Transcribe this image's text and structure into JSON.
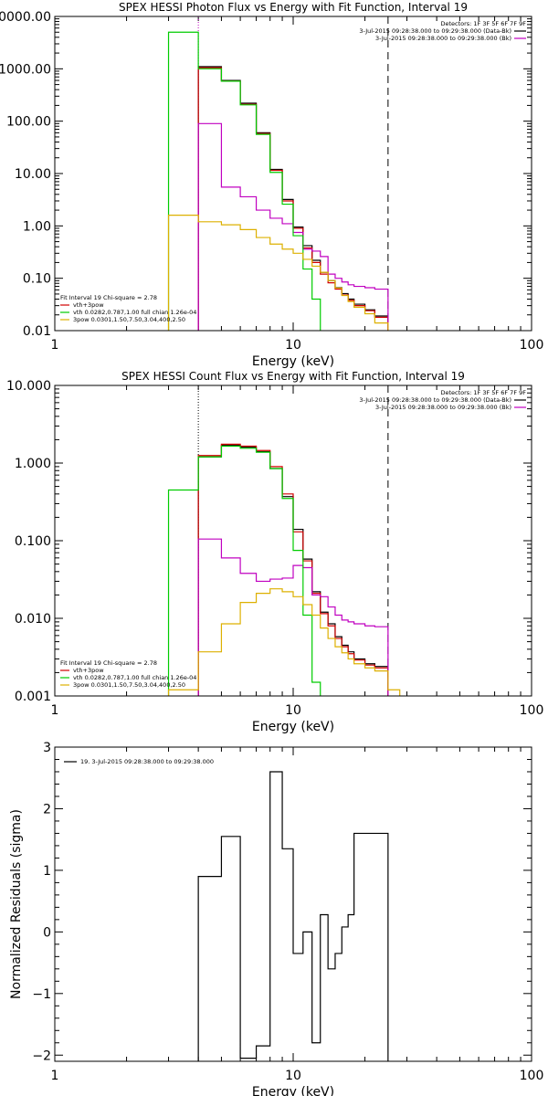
{
  "chart_data": [
    {
      "type": "line",
      "title": "SPEX HESSI Photon Flux vs Energy with Fit Function, Interval 19",
      "xlabel": "Energy (keV)",
      "ylabel": "",
      "xscale": "log",
      "yscale": "log",
      "xlim": [
        1,
        100
      ],
      "ylim": [
        0.01,
        10000
      ],
      "x_ticks": [
        {
          "value": 1,
          "label": "1"
        },
        {
          "value": 10,
          "label": "10"
        },
        {
          "value": 100,
          "label": "100"
        }
      ],
      "y_ticks": [
        {
          "value": 0.01,
          "label": "0.01"
        },
        {
          "value": 0.1,
          "label": "0.10"
        },
        {
          "value": 1,
          "label": "1.00"
        },
        {
          "value": 10,
          "label": "10.00"
        },
        {
          "value": 100,
          "label": "100.00"
        },
        {
          "value": 1000,
          "label": "1000.00"
        },
        {
          "value": 10000,
          "label": "10000.00"
        }
      ],
      "fit_range_lines": [
        {
          "x": 4.0,
          "style": "dotted",
          "color": "#c000c0"
        },
        {
          "x": 25.0,
          "style": "dashed",
          "color": "#000000"
        }
      ],
      "legend_top_right": [
        {
          "text": "Detectors: 1F 3F 5F 6F 7F 9F",
          "color": "#000000"
        },
        {
          "text": "3-Jul-2015 09:28:38.000 to 09:29:38.000 (Data-Bk)",
          "color": "#000000",
          "swatch": true
        },
        {
          "text": "3-Jul-2015 09:28:38.000 to 09:29:38.000 (Bk)",
          "color": "#c000c0",
          "swatch": true
        }
      ],
      "legend_bottom_left": [
        {
          "text": "Fit Interval 19   Chi-square = 2.78",
          "color": "#000000",
          "swatch": false
        },
        {
          "text": "vth+3pow",
          "color": "#d00000",
          "swatch": true
        },
        {
          "text": "vth 0.0282,0.787,1.00  full chian 1.26e-04",
          "color": "#00cc00",
          "swatch": true
        },
        {
          "text": "3pow 0.0301,1.50,7.50,3.04,400,2.50",
          "color": "#ddb000",
          "swatch": true
        }
      ],
      "series": [
        {
          "role": "data",
          "color": "#000000",
          "edges": [
            4,
            5,
            6,
            7,
            8,
            9,
            10,
            11,
            12,
            13,
            14,
            15,
            16,
            17,
            18,
            20,
            22,
            25
          ],
          "values": [
            1100,
            600,
            220,
            60,
            12,
            3.2,
            0.95,
            0.42,
            0.22,
            0.13,
            0.09,
            0.066,
            0.051,
            0.04,
            0.032,
            0.025,
            0.019
          ]
        },
        {
          "role": "total",
          "color": "#d00000",
          "edges": [
            4,
            5,
            6,
            7,
            8,
            9,
            10,
            11,
            12,
            13,
            14,
            15,
            16,
            17,
            18,
            20,
            22,
            25
          ],
          "values": [
            1050,
            580,
            210,
            58,
            11.5,
            3.0,
            0.9,
            0.38,
            0.2,
            0.12,
            0.082,
            0.062,
            0.048,
            0.038,
            0.03,
            0.024,
            0.018
          ]
        },
        {
          "role": "background",
          "color": "#c000c0",
          "edges": [
            4,
            5,
            6,
            7,
            8,
            9,
            10,
            11,
            12,
            13,
            14,
            15,
            16,
            17,
            18,
            20,
            22,
            25
          ],
          "values": [
            90,
            5.5,
            3.6,
            2.0,
            1.4,
            1.1,
            0.75,
            0.36,
            0.33,
            0.26,
            0.12,
            0.1,
            0.085,
            0.075,
            0.07,
            0.066,
            0.062
          ]
        },
        {
          "role": "thermal",
          "color": "#00cc00",
          "edges": [
            3,
            4,
            5,
            6,
            7,
            8,
            9,
            10,
            11,
            12,
            13
          ],
          "values": [
            5000,
            1000,
            580,
            205,
            56,
            10.5,
            2.6,
            0.65,
            0.15,
            0.04
          ]
        },
        {
          "role": "powerlaw",
          "color": "#ddb000",
          "edges": [
            3,
            4,
            5,
            6,
            7,
            8,
            9,
            10,
            11,
            12,
            13,
            14,
            15,
            16,
            17,
            18,
            20,
            22,
            25,
            28
          ],
          "values": [
            1.6,
            1.2,
            1.05,
            0.85,
            0.6,
            0.45,
            0.36,
            0.3,
            0.23,
            0.17,
            0.13,
            0.09,
            0.065,
            0.047,
            0.036,
            0.028,
            0.021,
            0.014,
            0.009
          ]
        }
      ]
    },
    {
      "type": "line",
      "title": "SPEX HESSI Count Flux vs Energy with Fit Function, Interval 19",
      "xlabel": "Energy (keV)",
      "ylabel": "",
      "xscale": "log",
      "yscale": "log",
      "xlim": [
        1,
        100
      ],
      "ylim": [
        0.001,
        10
      ],
      "x_ticks": [
        {
          "value": 1,
          "label": "1"
        },
        {
          "value": 10,
          "label": "10"
        },
        {
          "value": 100,
          "label": "100"
        }
      ],
      "y_ticks": [
        {
          "value": 0.001,
          "label": "0.001"
        },
        {
          "value": 0.01,
          "label": "0.010"
        },
        {
          "value": 0.1,
          "label": "0.100"
        },
        {
          "value": 1,
          "label": "1.000"
        },
        {
          "value": 10,
          "label": "10.000"
        }
      ],
      "fit_range_lines": [
        {
          "x": 4.0,
          "style": "dotted",
          "color": "#000000"
        },
        {
          "x": 25.0,
          "style": "dashed",
          "color": "#000000"
        }
      ],
      "legend_top_right": [
        {
          "text": "Detectors: 1F 3F 5F 6F 7F 9F",
          "color": "#000000"
        },
        {
          "text": "3-Jul-2015 09:28:38.000 to 09:29:38.000 (Data-Bk)",
          "color": "#000000",
          "swatch": true
        },
        {
          "text": "3-Jul-2015 09:28:38.000 to 09:29:38.000 (Bk)",
          "color": "#c000c0",
          "swatch": true
        }
      ],
      "legend_bottom_left": [
        {
          "text": "Fit Interval 19   Chi-square = 2.78",
          "color": "#000000",
          "swatch": false
        },
        {
          "text": "vth+3pow",
          "color": "#d00000",
          "swatch": true
        },
        {
          "text": "vth 0.0282,0.787,1.00  full chian 1.26e-04",
          "color": "#00cc00",
          "swatch": true
        },
        {
          "text": "3pow 0.0301,1.50,7.50,3.04,400,2.50",
          "color": "#ddb000",
          "swatch": true
        }
      ],
      "series": [
        {
          "role": "data",
          "color": "#000000",
          "edges": [
            4,
            5,
            6,
            7,
            8,
            9,
            10,
            11,
            12,
            13,
            14,
            15,
            16,
            17,
            18,
            20,
            22,
            25
          ],
          "values": [
            1.2,
            1.7,
            1.6,
            1.4,
            0.85,
            0.37,
            0.14,
            0.058,
            0.022,
            0.012,
            0.0085,
            0.0058,
            0.0045,
            0.0037,
            0.003,
            0.0026,
            0.0024
          ]
        },
        {
          "role": "total",
          "color": "#d00000",
          "edges": [
            4,
            5,
            6,
            7,
            8,
            9,
            10,
            11,
            12,
            13,
            14,
            15,
            16,
            17,
            18,
            20,
            22,
            25
          ],
          "values": [
            1.25,
            1.75,
            1.65,
            1.45,
            0.9,
            0.4,
            0.13,
            0.055,
            0.021,
            0.0115,
            0.008,
            0.0055,
            0.0043,
            0.0035,
            0.0029,
            0.0025,
            0.0023
          ]
        },
        {
          "role": "background",
          "color": "#c000c0",
          "edges": [
            4,
            5,
            6,
            7,
            8,
            9,
            10,
            11,
            12,
            13,
            14,
            15,
            16,
            17,
            18,
            20,
            22,
            25
          ],
          "values": [
            0.105,
            0.06,
            0.038,
            0.03,
            0.032,
            0.033,
            0.048,
            0.045,
            0.02,
            0.019,
            0.014,
            0.011,
            0.0095,
            0.009,
            0.0085,
            0.008,
            0.0078
          ]
        },
        {
          "role": "thermal",
          "color": "#00cc00",
          "edges": [
            3,
            4,
            5,
            6,
            7,
            8,
            9,
            10,
            11,
            12,
            13
          ],
          "values": [
            0.45,
            1.2,
            1.65,
            1.55,
            1.38,
            0.85,
            0.35,
            0.075,
            0.011,
            0.0015
          ]
        },
        {
          "role": "powerlaw",
          "color": "#ddb000",
          "edges": [
            3,
            4,
            5,
            6,
            7,
            8,
            9,
            10,
            11,
            12,
            13,
            14,
            15,
            16,
            17,
            18,
            20,
            22,
            25,
            28
          ],
          "values": [
            0.0012,
            0.0037,
            0.0085,
            0.016,
            0.021,
            0.024,
            0.022,
            0.019,
            0.015,
            0.011,
            0.0075,
            0.0055,
            0.0043,
            0.0036,
            0.003,
            0.0026,
            0.0023,
            0.0021,
            0.0012
          ]
        }
      ]
    },
    {
      "type": "line",
      "title": "",
      "xlabel": "Energy (keV)",
      "ylabel": "Normalized Residuals (sigma)",
      "xscale": "log",
      "yscale": "linear",
      "xlim": [
        1,
        100
      ],
      "ylim": [
        -2.1,
        3
      ],
      "x_ticks": [
        {
          "value": 1,
          "label": "1"
        },
        {
          "value": 10,
          "label": "10"
        },
        {
          "value": 100,
          "label": "100"
        }
      ],
      "y_ticks": [
        {
          "value": -2,
          "label": "−2"
        },
        {
          "value": -1,
          "label": "−1"
        },
        {
          "value": 0,
          "label": "0"
        },
        {
          "value": 1,
          "label": "1"
        },
        {
          "value": 2,
          "label": "2"
        },
        {
          "value": 3,
          "label": "3"
        }
      ],
      "fit_range_lines": [],
      "legend_top_left": [
        {
          "text": "19.  3-Jul-2015 09:28:38.000 to 09:29:38.000",
          "color": "#000000",
          "swatch": true
        }
      ],
      "series": [
        {
          "role": "residuals",
          "color": "#000000",
          "edges": [
            4,
            5,
            6,
            7,
            8,
            9,
            10,
            11,
            12,
            13,
            14,
            15,
            16,
            17,
            18,
            20,
            22,
            25
          ],
          "values": [
            0.9,
            1.55,
            -2.05,
            -1.85,
            2.6,
            1.35,
            -0.35,
            0.0,
            -1.8,
            0.28,
            -0.6,
            -0.35,
            0.08,
            0.28,
            1.6,
            1.6,
            1.6
          ]
        }
      ]
    }
  ]
}
